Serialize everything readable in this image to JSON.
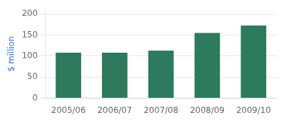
{
  "chart_data": {
    "type": "bar",
    "ylabel": "$ million",
    "categories": [
      "2005/06",
      "2006/07",
      "2007/08",
      "2008/09",
      "2009/10"
    ],
    "values": [
      108,
      108,
      113,
      155,
      173
    ],
    "color": "#2d7a5e",
    "ylim": [
      0,
      210
    ],
    "yticks": [
      0,
      50,
      100,
      150,
      200
    ],
    "grid": true
  }
}
